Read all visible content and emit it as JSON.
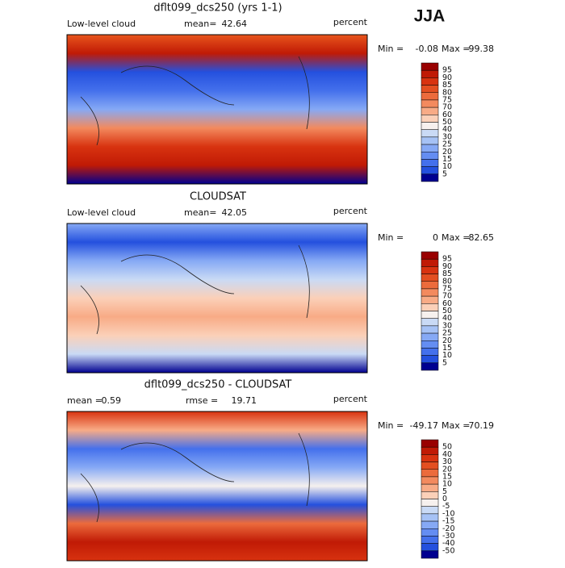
{
  "season": "JJA",
  "colors": [
    "#990000",
    "#c01a05",
    "#d83310",
    "#e34f21",
    "#ec6b3c",
    "#f38a5e",
    "#f8ab86",
    "#fbd0b8",
    "#f7f1ee",
    "#c9daf5",
    "#a6c2f5",
    "#86a9f5",
    "#648df2",
    "#4470ec",
    "#2450de",
    "#000090"
  ],
  "panels": [
    {
      "title": "dflt099_dcs250 (yrs 1-1)",
      "left": "Low-level cloud",
      "stat_label": "mean=",
      "stat": 42.64,
      "units": "percent",
      "min_label": "Min =",
      "min": -0.08,
      "max_label": "Max =",
      "max": 99.38,
      "levels": [
        95,
        90,
        85,
        80,
        75,
        70,
        60,
        50,
        40,
        30,
        25,
        20,
        15,
        10,
        5
      ]
    },
    {
      "title": "CLOUDSAT",
      "left": "Low-level cloud",
      "stat_label": "mean=",
      "stat": 42.05,
      "units": "percent",
      "min_label": "Min =",
      "min": 0.0,
      "max_label": "Max =",
      "max": 82.65,
      "levels": [
        95,
        90,
        85,
        80,
        75,
        70,
        60,
        50,
        40,
        30,
        25,
        20,
        15,
        10,
        5
      ]
    },
    {
      "title": "dflt099_dcs250 - CLOUDSAT",
      "left": "mean =",
      "left_value": 0.59,
      "stat_label": "rmse =",
      "stat": 19.71,
      "units": "percent",
      "min_label": "Min =",
      "min": -49.17,
      "max_label": "Max =",
      "max": 70.19,
      "levels": [
        50,
        40,
        30,
        20,
        15,
        10,
        5,
        0,
        -5,
        -10,
        -15,
        -20,
        -30,
        -40,
        -50
      ]
    }
  ]
}
